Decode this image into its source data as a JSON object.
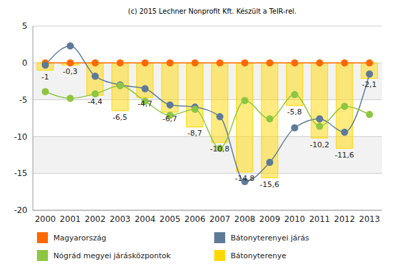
{
  "chart_data": {
    "type": "bar",
    "title": "(c) 2015 Lechner Nonprofit Kft. Készült a TeIR-rel.",
    "categories": [
      "2000",
      "2001",
      "2002",
      "2003",
      "2004",
      "2005",
      "2006",
      "2007",
      "2008",
      "2009",
      "2010",
      "2011",
      "2012",
      "2013"
    ],
    "series": [
      {
        "name": "Magyarország",
        "type": "line",
        "color": "#ff6a00",
        "marker": "circle",
        "line_style": "solid",
        "values": [
          0,
          0,
          0,
          0,
          0,
          0,
          0,
          0,
          0,
          0,
          0,
          0,
          0,
          0
        ]
      },
      {
        "name": "Bátonyterenyei járás",
        "type": "line",
        "color": "#5d7a99",
        "marker": "circle",
        "line_style": "solid",
        "values": [
          -0.3,
          2.3,
          -1.8,
          -3.0,
          -3.5,
          -5.7,
          -6.0,
          -7.3,
          -16.1,
          -13.5,
          -8.8,
          -7.6,
          -9.4,
          -1.5
        ]
      },
      {
        "name": "Nógrád megyei járásközpontok",
        "type": "line",
        "color": "#8dc641",
        "marker": "circle",
        "line_style": "solid",
        "values": [
          -3.9,
          -4.8,
          -4.2,
          -3.1,
          -5.2,
          -7.1,
          -6.3,
          -11.6,
          -5.1,
          -7.6,
          -4.3,
          -8.6,
          -5.9,
          -7.0
        ]
      },
      {
        "name": "Bátonyterenye",
        "type": "bar",
        "color": "#ffd700",
        "data_labels": true,
        "values": [
          -1,
          -0.3,
          -4.4,
          -6.5,
          -4.7,
          -6.7,
          -8.7,
          -10.8,
          -14.8,
          -15.6,
          -5.8,
          -10.2,
          -11.6,
          -2.1
        ],
        "value_labels": [
          "-1",
          "-0,3",
          "-4,4",
          "-6,5",
          "-4,7",
          "-6,7",
          "-8,7",
          "-10,8",
          "-14,8",
          "-15,6",
          "-5,8",
          "-10,2",
          "-11,6",
          "-2,1"
        ]
      }
    ],
    "ylim": [
      -20,
      5
    ],
    "yticks": [
      -20,
      -15,
      -10,
      -5,
      0,
      5
    ],
    "grid": true,
    "legend": "bottom"
  }
}
